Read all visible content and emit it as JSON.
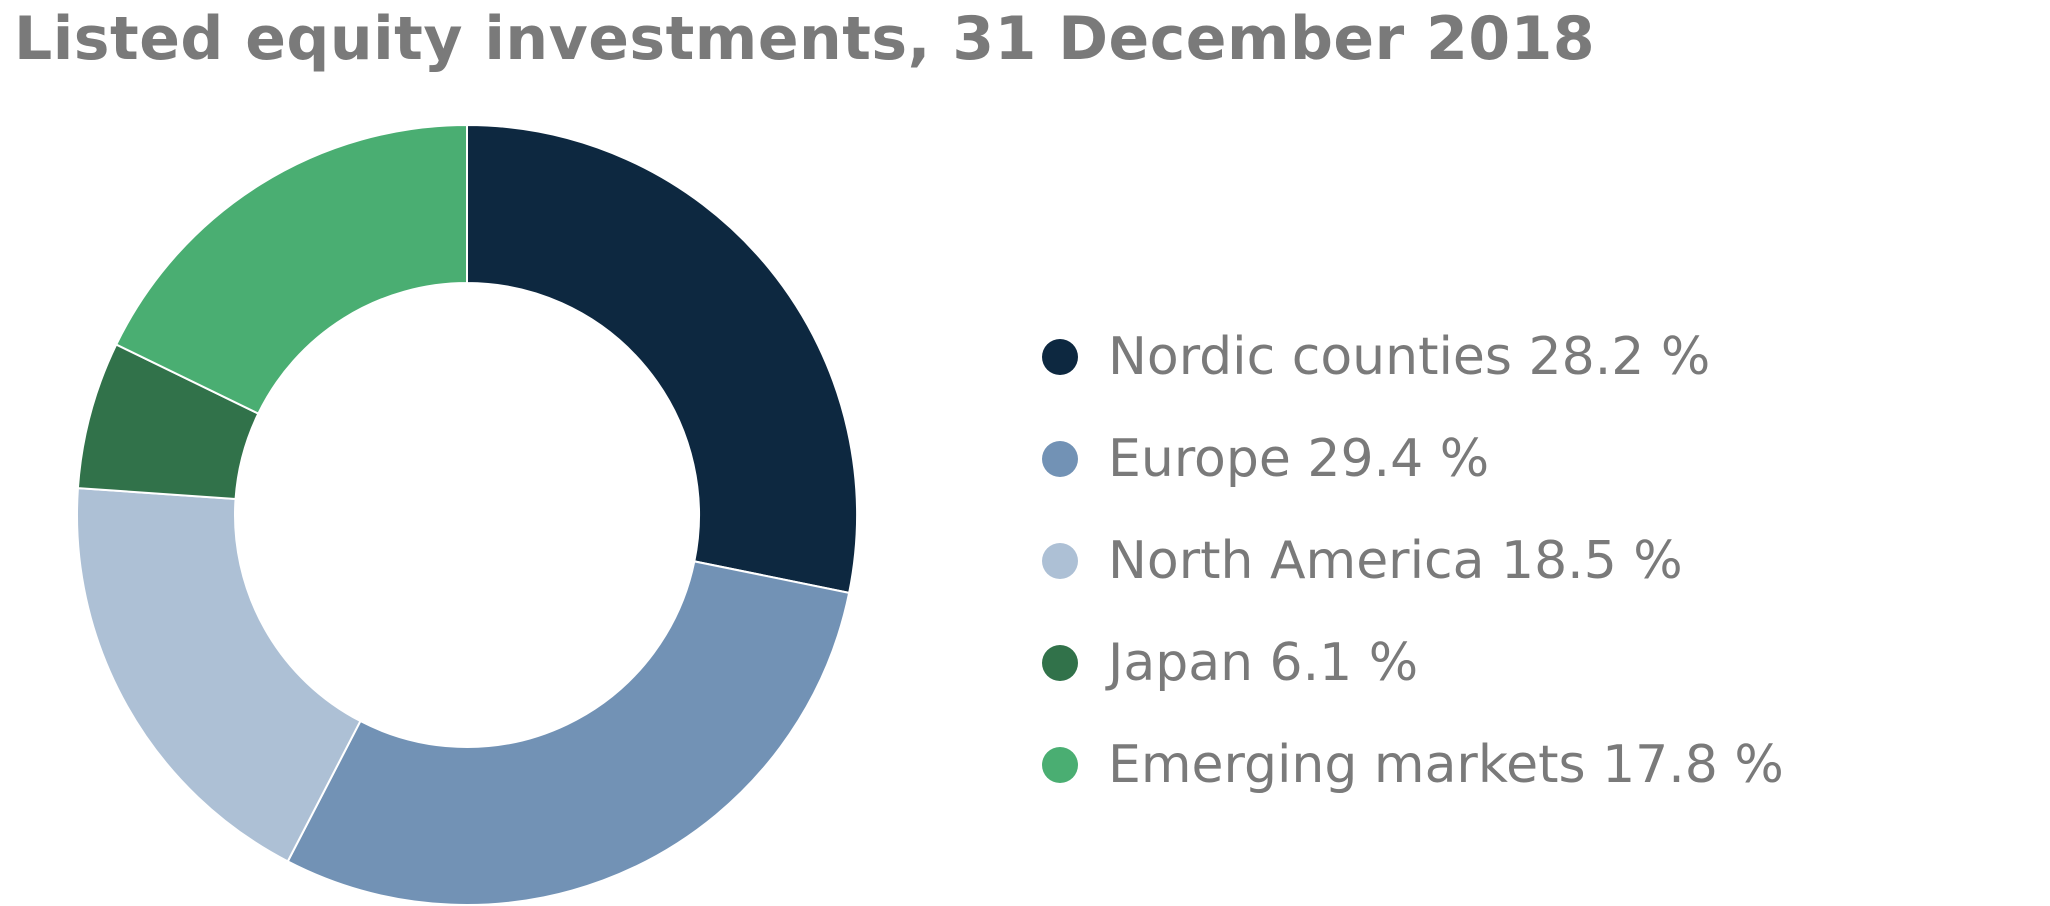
{
  "chart_data": {
    "type": "pie",
    "style": "donut",
    "title": "Listed equity investments, 31 December 2018",
    "categories": [
      "Nordic counties",
      "Europe",
      "North America",
      "Japan",
      "Emerging markets"
    ],
    "values": [
      28.2,
      29.4,
      18.5,
      6.1,
      17.8
    ],
    "unit": "%",
    "colors": [
      "#0d2840",
      "#7292b5",
      "#adc0d5",
      "#31724a",
      "#4aae72"
    ],
    "legend": {
      "position": "right",
      "labels": [
        "Nordic counties 28.2 %",
        "Europe 29.4 %",
        "North America 18.5 %",
        "Japan 6.1 %",
        "Emerging markets 17.8 %"
      ]
    }
  }
}
